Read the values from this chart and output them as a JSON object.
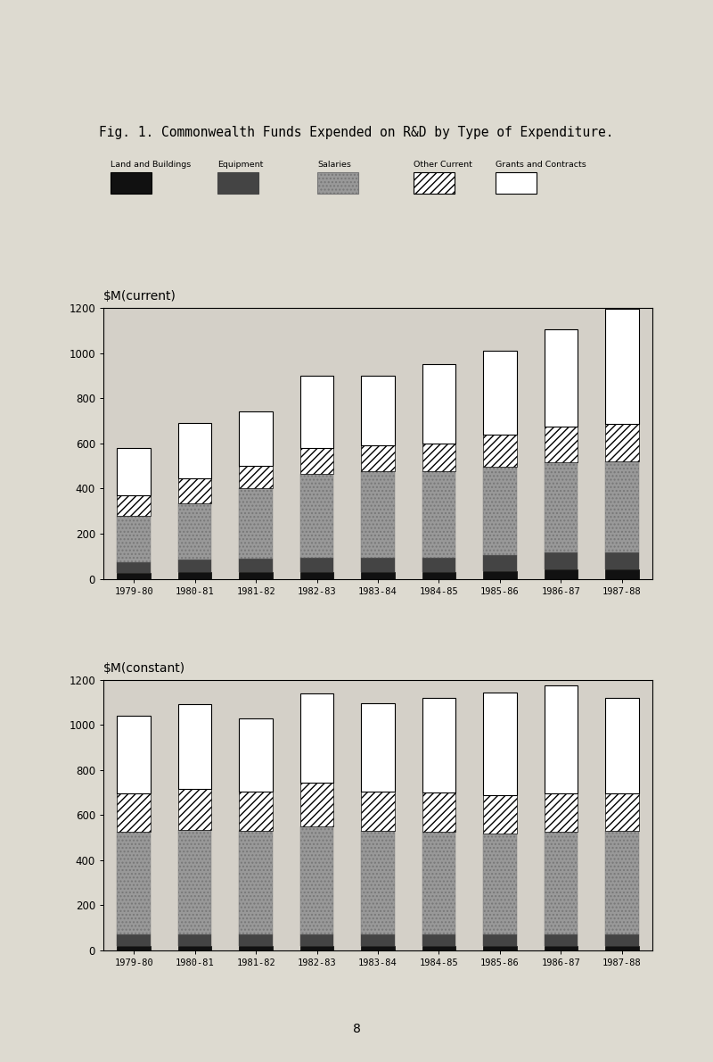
{
  "title": "Fig. 1. Commonwealth Funds Expended on R&D by Type of Expenditure.",
  "categories": [
    "1979-80",
    "1980-81",
    "1981-82",
    "1982-83",
    "1983-84",
    "1984-85",
    "1985-86",
    "1986-87",
    "1987-88"
  ],
  "current": {
    "ylabel": "$M(current)",
    "land_buildings": [
      25,
      30,
      30,
      30,
      30,
      30,
      35,
      40,
      40
    ],
    "equipment": [
      50,
      55,
      60,
      65,
      65,
      65,
      70,
      75,
      75
    ],
    "salaries": [
      205,
      250,
      310,
      370,
      380,
      380,
      390,
      400,
      405
    ],
    "other_current": [
      90,
      110,
      100,
      115,
      115,
      125,
      145,
      160,
      165
    ],
    "grants_contracts": [
      210,
      245,
      240,
      320,
      310,
      350,
      370,
      430,
      510
    ]
  },
  "constant": {
    "ylabel": "$M(constant)",
    "land_buildings": [
      20,
      20,
      20,
      20,
      20,
      20,
      20,
      20,
      20
    ],
    "equipment": [
      50,
      50,
      50,
      50,
      50,
      50,
      50,
      50,
      50
    ],
    "salaries": [
      455,
      465,
      460,
      480,
      460,
      455,
      450,
      455,
      460
    ],
    "other_current": [
      170,
      180,
      175,
      195,
      175,
      175,
      170,
      170,
      165
    ],
    "grants_contracts": [
      345,
      375,
      325,
      395,
      390,
      420,
      455,
      480,
      425
    ]
  },
  "legend_labels": [
    "Land and Buildings",
    "Equipment",
    "Salaries",
    "Other Current",
    "Grants and Contracts"
  ],
  "bg_color": "#d4d0c8",
  "page_color": "#dddad0"
}
